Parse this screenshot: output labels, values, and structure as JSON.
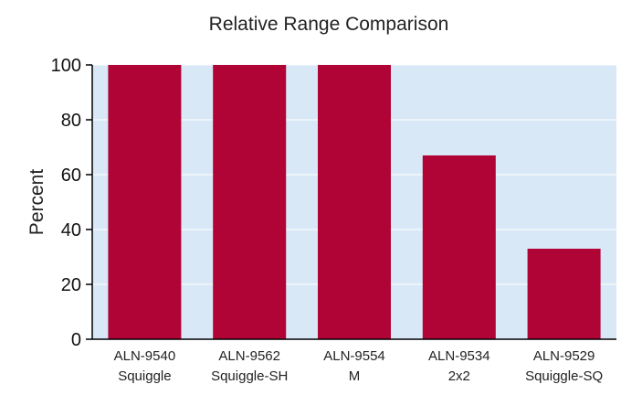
{
  "chart_data": {
    "type": "bar",
    "title": "Relative Range Comparison",
    "xlabel": "",
    "ylabel": "Percent",
    "ylim": [
      0,
      100
    ],
    "yticks": [
      0,
      20,
      40,
      60,
      80,
      100
    ],
    "categories": [
      [
        "ALN-9540",
        "Squiggle"
      ],
      [
        "ALN-9562",
        "Squiggle-SH"
      ],
      [
        "ALN-9554",
        "M"
      ],
      [
        "ALN-9534",
        "2x2"
      ],
      [
        "ALN-9529",
        "Squiggle-SQ"
      ]
    ],
    "values": [
      100,
      100,
      100,
      67,
      33
    ],
    "colors": {
      "bar": "#b00436",
      "plot_background": "#d9e8f6",
      "gridline": "#ffffff",
      "axis": "#000000",
      "text": "#222222"
    },
    "grid": true,
    "legend": "none"
  }
}
